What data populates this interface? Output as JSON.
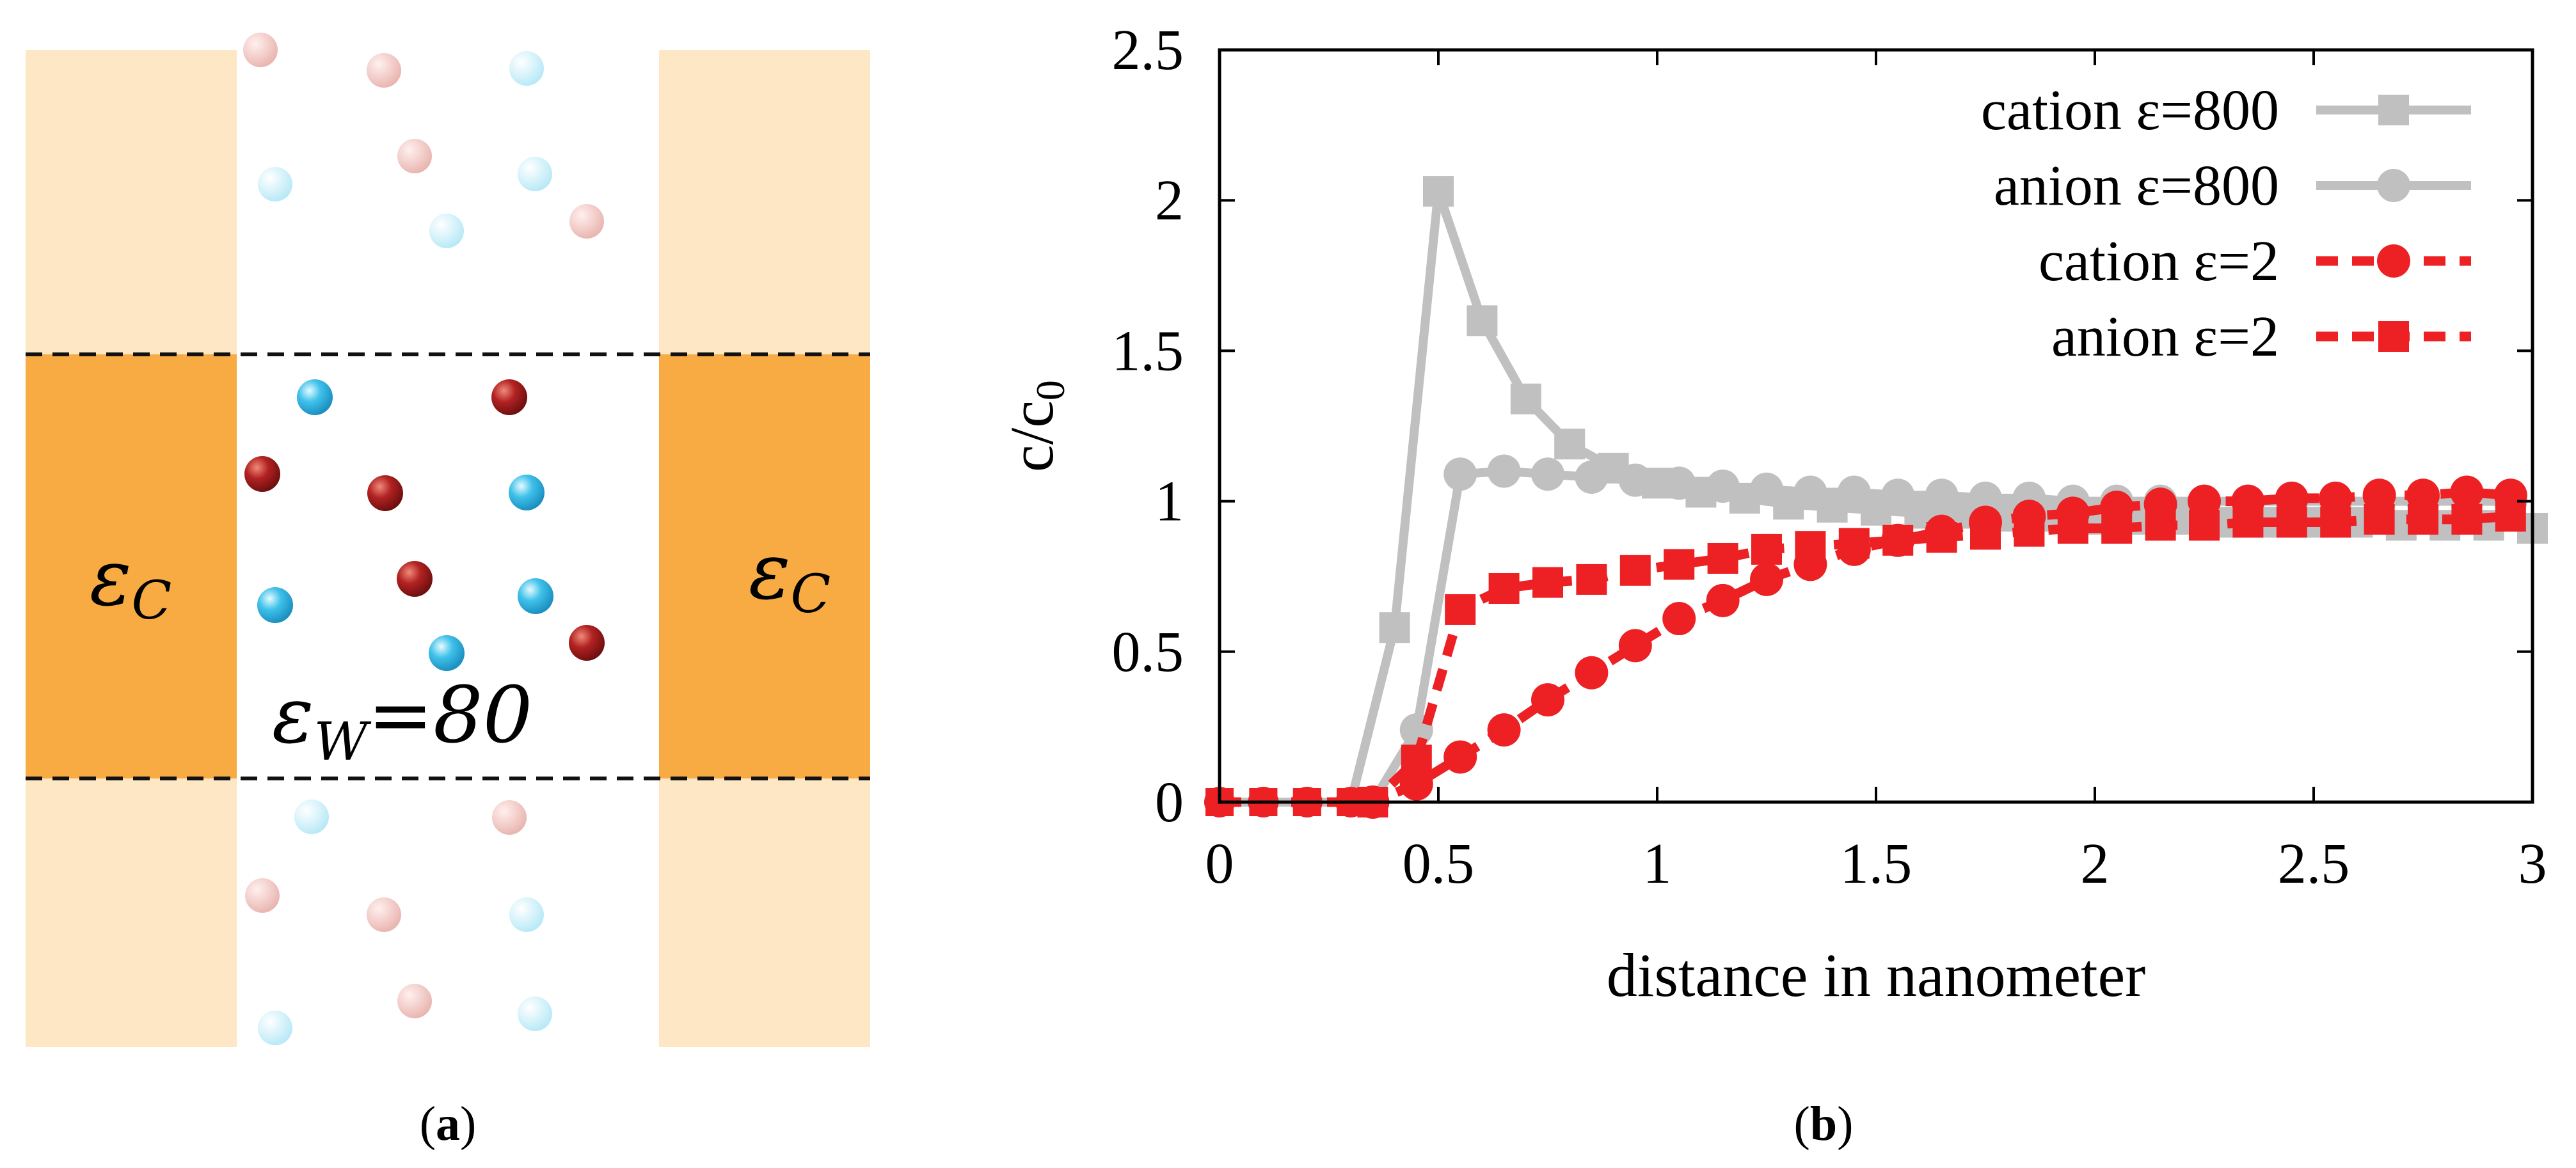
{
  "panel_a": {
    "caption_letter": "a",
    "paren_open": "(",
    "paren_close": ")",
    "eps_symbol": "ε",
    "left_sub": "C",
    "right_sub": "C",
    "water_sub": "W",
    "water_value": "=80",
    "colors": {
      "confinement": "#f7ab42",
      "confinement_faded": "#fde7c5",
      "cation": "#b22222",
      "anion": "#3fc1ea"
    }
  },
  "panel_b": {
    "caption_letter": "b",
    "paren_open": "(",
    "paren_close": ")",
    "ylabel_main": "c/c",
    "ylabel_sub": "0"
  },
  "chart_data": {
    "type": "line",
    "title": "",
    "xlabel": "distance in nanometer",
    "ylabel": "c/c0",
    "xlim": [
      0,
      3
    ],
    "ylim": [
      0,
      2.5
    ],
    "x_ticks": [
      {
        "v": 0,
        "label": "0"
      },
      {
        "v": 0.5,
        "label": "0.5"
      },
      {
        "v": 1,
        "label": "1"
      },
      {
        "v": 1.5,
        "label": "1.5"
      },
      {
        "v": 2,
        "label": "2"
      },
      {
        "v": 2.5,
        "label": "2.5"
      },
      {
        "v": 3,
        "label": "3"
      }
    ],
    "y_ticks": [
      {
        "v": 0,
        "label": "0"
      },
      {
        "v": 0.5,
        "label": "0.5"
      },
      {
        "v": 1,
        "label": "1"
      },
      {
        "v": 1.5,
        "label": "1.5"
      },
      {
        "v": 2,
        "label": "2"
      },
      {
        "v": 2.5,
        "label": "2.5"
      }
    ],
    "legend_position": "top-right",
    "x": [
      0,
      0.1,
      0.2,
      0.3,
      0.35,
      0.4,
      0.45,
      0.5,
      0.6,
      0.7,
      0.8,
      0.9,
      1.0,
      1.1,
      1.2,
      1.3,
      1.4,
      1.5,
      1.6,
      1.7,
      1.8,
      1.9,
      2.0,
      2.1,
      2.2,
      2.3,
      2.4,
      2.5,
      2.6,
      2.7,
      2.8,
      2.9,
      3.0
    ],
    "series": [
      {
        "name": "cation ε=800",
        "color": "#c0c0c0",
        "marker": "square",
        "dashed": false,
        "x": [
          0,
          0.1,
          0.2,
          0.3,
          0.4,
          0.5,
          0.6,
          0.7,
          0.8,
          0.9,
          1.0,
          1.1,
          1.2,
          1.3,
          1.4,
          1.5,
          1.6,
          1.7,
          1.8,
          1.9,
          2.0,
          2.1,
          2.2,
          2.3,
          2.4,
          2.5,
          2.6,
          2.7,
          2.8,
          2.9,
          3.0
        ],
        "values": [
          0,
          0,
          0,
          0,
          0.58,
          2.03,
          1.6,
          1.34,
          1.19,
          1.11,
          1.06,
          1.03,
          1.01,
          0.99,
          0.98,
          0.97,
          0.96,
          0.96,
          0.95,
          0.95,
          0.94,
          0.94,
          0.94,
          0.93,
          0.93,
          0.93,
          0.93,
          0.92,
          0.92,
          0.92,
          0.91
        ]
      },
      {
        "name": "anion ε=800",
        "color": "#c0c0c0",
        "marker": "circle",
        "dashed": false,
        "x": [
          0,
          0.1,
          0.2,
          0.3,
          0.35,
          0.45,
          0.55,
          0.65,
          0.75,
          0.85,
          0.95,
          1.05,
          1.15,
          1.25,
          1.35,
          1.45,
          1.55,
          1.65,
          1.75,
          1.85,
          1.95,
          2.05,
          2.15,
          2.25,
          2.35,
          2.45,
          2.55,
          2.65,
          2.75,
          2.85,
          2.95
        ],
        "values": [
          0,
          0,
          0,
          0,
          0,
          0.24,
          1.09,
          1.1,
          1.09,
          1.08,
          1.07,
          1.06,
          1.05,
          1.04,
          1.03,
          1.03,
          1.02,
          1.02,
          1.01,
          1.01,
          1.0,
          1.0,
          1.0,
          1.0,
          1.0,
          1.0,
          1.0,
          1.0,
          1.0,
          1.0,
          1.0
        ]
      },
      {
        "name": "cation ε=2",
        "color": "#ed2024",
        "marker": "circle",
        "dashed": true,
        "x": [
          0,
          0.1,
          0.2,
          0.3,
          0.35,
          0.45,
          0.55,
          0.65,
          0.75,
          0.85,
          0.95,
          1.05,
          1.15,
          1.25,
          1.35,
          1.45,
          1.55,
          1.65,
          1.75,
          1.85,
          1.95,
          2.05,
          2.15,
          2.25,
          2.35,
          2.45,
          2.55,
          2.65,
          2.75,
          2.85,
          2.95
        ],
        "values": [
          0,
          0,
          0,
          0,
          0,
          0.06,
          0.15,
          0.24,
          0.34,
          0.43,
          0.52,
          0.61,
          0.67,
          0.74,
          0.79,
          0.84,
          0.87,
          0.9,
          0.93,
          0.95,
          0.96,
          0.98,
          0.99,
          1.0,
          1.0,
          1.01,
          1.01,
          1.02,
          1.02,
          1.03,
          1.02
        ]
      },
      {
        "name": "anion ε=2",
        "color": "#ed2024",
        "marker": "square",
        "dashed": true,
        "x": [
          0,
          0.1,
          0.2,
          0.3,
          0.35,
          0.45,
          0.55,
          0.65,
          0.75,
          0.85,
          0.95,
          1.05,
          1.15,
          1.25,
          1.35,
          1.45,
          1.55,
          1.65,
          1.75,
          1.85,
          1.95,
          2.05,
          2.15,
          2.25,
          2.35,
          2.45,
          2.55,
          2.65,
          2.75,
          2.85,
          2.95
        ],
        "values": [
          0,
          0,
          0,
          0,
          0,
          0.14,
          0.64,
          0.71,
          0.73,
          0.74,
          0.77,
          0.79,
          0.81,
          0.84,
          0.85,
          0.86,
          0.87,
          0.88,
          0.89,
          0.9,
          0.91,
          0.91,
          0.92,
          0.92,
          0.93,
          0.93,
          0.93,
          0.94,
          0.94,
          0.94,
          0.95
        ]
      }
    ]
  }
}
